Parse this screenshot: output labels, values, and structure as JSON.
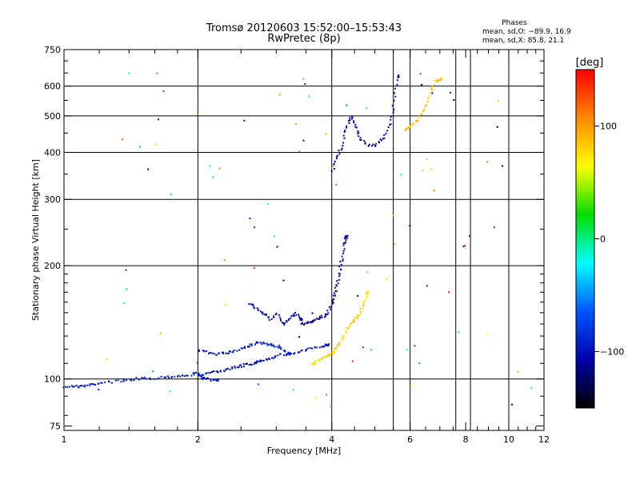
{
  "chart_data": {
    "type": "scatter",
    "title": "Tromsø 20120603 15:52:00–15:53:43",
    "subtitle": "RwPretec (8p)",
    "phases": {
      "heading": "Phases",
      "line_o": "mean, sd,O: −89.9, 16.9",
      "line_x": "mean, sd,X:  85.8, 21.1"
    },
    "xlabel": "Frequency [MHz]",
    "ylabel": "Stationary phase Virtual Height [km]",
    "x_scale": "log",
    "y_scale": "log",
    "xlim": [
      1,
      12
    ],
    "ylim": [
      73,
      750
    ],
    "x_ticks": [
      1,
      2,
      4,
      6,
      8,
      10,
      12
    ],
    "x_tick_labels": [
      "1",
      "2",
      "4",
      "6",
      "8",
      "10",
      "12"
    ],
    "x_minor_ticks": [
      1.2,
      1.4,
      1.6,
      1.8,
      2.5,
      3,
      3.5,
      4.5,
      5,
      5.5,
      6.5,
      7,
      7.5,
      8.5,
      9,
      9.5,
      10.5,
      11,
      11.5
    ],
    "x_gridlines": [
      2,
      4,
      5.5,
      6,
      7.6,
      8.2,
      10
    ],
    "y_ticks": [
      75,
      100,
      200,
      300,
      400,
      500,
      600,
      750
    ],
    "y_tick_labels": [
      "75",
      "100",
      "200",
      "300",
      "400",
      "500",
      "600",
      "750"
    ],
    "y_minor_ticks": [
      80,
      90,
      110,
      120,
      130,
      140,
      150,
      160,
      170,
      180,
      190,
      250,
      350,
      450,
      550,
      650,
      700
    ],
    "y_gridlines": [
      100,
      200,
      300,
      400,
      500,
      600
    ],
    "grid": true,
    "colorbar": {
      "label": "[deg]",
      "min": -150,
      "max": 150,
      "ticks": [
        100,
        0,
        -100
      ],
      "tick_labels": [
        "100",
        "0",
        "−100"
      ],
      "colors": [
        "#ff0000",
        "#ff8800",
        "#ffff00",
        "#00dd00",
        "#00ffff",
        "#0055ff",
        "#0000aa",
        "#000000"
      ]
    },
    "series": [
      {
        "phase": -95,
        "x": [
          1.0,
          1.05,
          1.1,
          1.15,
          1.2,
          1.3,
          1.4,
          1.5,
          1.6,
          1.7,
          1.8,
          1.9,
          2.0,
          2.05,
          2.1,
          2.2
        ],
        "y": [
          96,
          96,
          96,
          97,
          98,
          99,
          100,
          101,
          101,
          102,
          102,
          103,
          104,
          101,
          100,
          100
        ]
      },
      {
        "phase": -100,
        "x": [
          2.0,
          2.1,
          2.2,
          2.3,
          2.4,
          2.5,
          2.6,
          2.7,
          2.8,
          2.9,
          3.0,
          3.2,
          3.4,
          3.6,
          3.8,
          3.9
        ],
        "y": [
          103,
          104,
          105,
          106,
          108,
          109,
          110,
          111,
          113,
          114,
          116,
          117,
          119,
          121,
          123,
          124
        ]
      },
      {
        "phase": -95,
        "x": [
          2.0,
          2.1,
          2.2,
          2.3,
          2.4,
          2.5,
          2.6,
          2.7,
          2.8,
          2.9,
          3.0,
          3.1,
          3.2
        ],
        "y": [
          120,
          118,
          117,
          118,
          119,
          121,
          123,
          125,
          125,
          124,
          123,
          120,
          117
        ]
      },
      {
        "phase": -110,
        "x": [
          3.4,
          3.5,
          3.6,
          3.7,
          3.8,
          3.9,
          4.0,
          4.05,
          4.1,
          4.15,
          4.2,
          4.25,
          4.3
        ],
        "y": [
          140,
          142,
          143,
          145,
          147,
          150,
          160,
          170,
          180,
          195,
          210,
          230,
          240
        ]
      },
      {
        "phase": -105,
        "x": [
          2.6,
          2.7,
          2.8,
          2.9,
          3.0,
          3.1,
          3.2,
          3.3,
          3.4
        ],
        "y": [
          160,
          155,
          150,
          145,
          150,
          140,
          145,
          150,
          145
        ]
      },
      {
        "phase": 80,
        "x": [
          3.6,
          3.7,
          3.8,
          3.9,
          4.0,
          4.1,
          4.2,
          4.3,
          4.4,
          4.5,
          4.6,
          4.7,
          4.8
        ],
        "y": [
          110,
          112,
          114,
          116,
          118,
          122,
          128,
          135,
          140,
          145,
          150,
          160,
          170
        ]
      },
      {
        "phase": -110,
        "x": [
          4.0,
          4.1,
          4.2,
          4.3,
          4.4,
          4.5,
          4.6,
          4.8,
          5.0,
          5.2,
          5.4,
          5.5,
          5.6
        ],
        "y": [
          360,
          390,
          420,
          470,
          500,
          470,
          440,
          420,
          420,
          440,
          480,
          550,
          640
        ]
      },
      {
        "phase": 85,
        "x": [
          5.8,
          6.0,
          6.2,
          6.4,
          6.6,
          6.8,
          7.0
        ],
        "y": [
          460,
          470,
          490,
          520,
          570,
          620,
          630
        ]
      }
    ],
    "scatter_notes": "sparse isolated multicolored points scattered across the plot"
  }
}
